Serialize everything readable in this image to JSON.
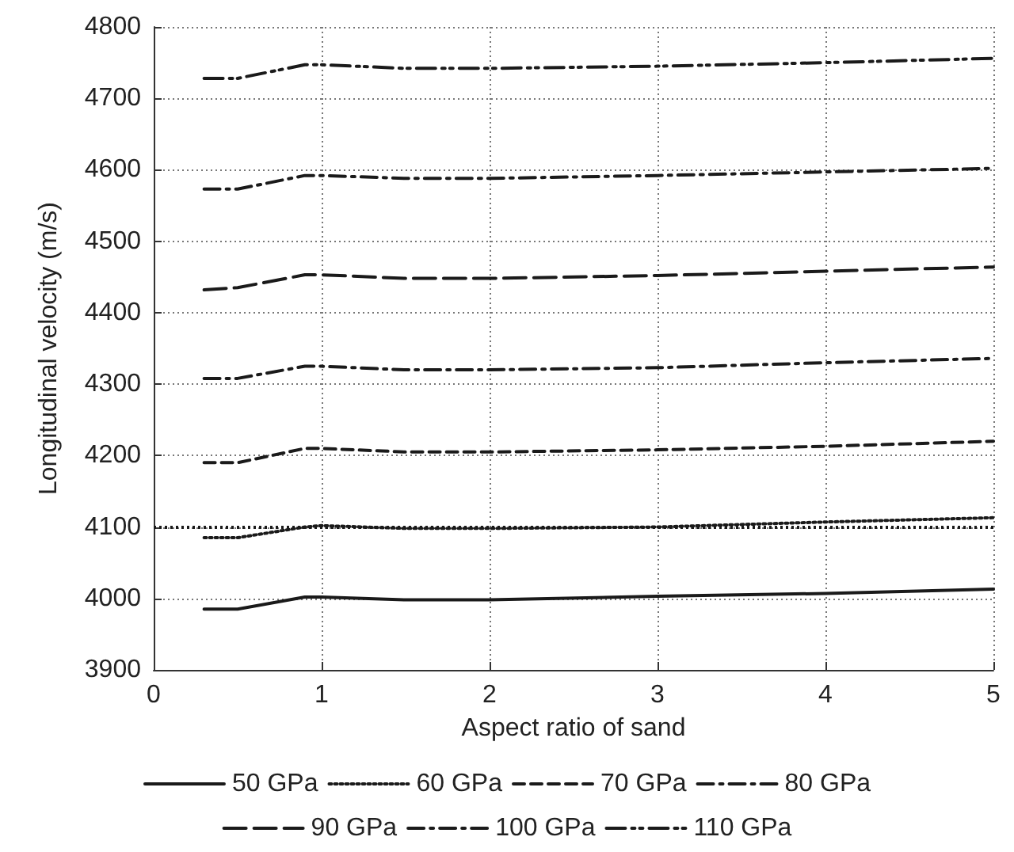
{
  "chart_data": {
    "type": "line",
    "xlabel": "Aspect ratio of sand",
    "ylabel": "Longitudinal velocity (m/s)",
    "x": [
      0.3,
      0.5,
      0.9,
      1,
      1.5,
      2,
      3,
      4,
      5
    ],
    "series": [
      {
        "name": "50 GPa",
        "color": "#1a1a1a",
        "line_style": "solid",
        "values": [
          3985,
          3985,
          4002,
          4002,
          3998,
          3998,
          4003,
          4007,
          4013
        ]
      },
      {
        "name": "60 GPa",
        "color": "#1a1a1a",
        "line_style": "dotted",
        "values": [
          4085,
          4085,
          4100,
          4102,
          4098,
          4098,
          4100,
          4107,
          4113
        ]
      },
      {
        "name": "70 GPa",
        "color": "#1a1a1a",
        "line_style": "dashed",
        "values": [
          4190,
          4190,
          4210,
          4210,
          4205,
          4205,
          4208,
          4213,
          4220
        ]
      },
      {
        "name": "80 GPa",
        "color": "#1a1a1a",
        "line_style": "dashdot",
        "values": [
          4308,
          4308,
          4325,
          4325,
          4320,
          4320,
          4323,
          4330,
          4336
        ]
      },
      {
        "name": "90 GPa",
        "color": "#1a1a1a",
        "line_style": "longdash",
        "values": [
          4432,
          4435,
          4453,
          4453,
          4448,
          4448,
          4452,
          4458,
          4464
        ]
      },
      {
        "name": "100 GPa",
        "color": "#1a1a1a",
        "line_style": "dashdot",
        "values": [
          4573,
          4573,
          4592,
          4592,
          4588,
          4588,
          4592,
          4597,
          4602
        ]
      },
      {
        "name": "110 GPa",
        "color": "#1a1a1a",
        "line_style": "dashdotdot",
        "values": [
          4728,
          4728,
          4747,
          4747,
          4742,
          4742,
          4745,
          4750,
          4756
        ]
      }
    ],
    "ref_lines": [
      {
        "axis": "y",
        "value": 4100,
        "color": "#1a1a1a",
        "line_style": "dotted"
      }
    ],
    "xlim": [
      0,
      5
    ],
    "xticks": [
      0,
      1,
      2,
      3,
      4,
      5
    ],
    "ylim": [
      3900,
      4800
    ],
    "yticks": [
      3900,
      4000,
      4100,
      4200,
      4300,
      4400,
      4500,
      4600,
      4700,
      4800
    ],
    "grid": true,
    "legend": "bottom",
    "marker": "none"
  }
}
